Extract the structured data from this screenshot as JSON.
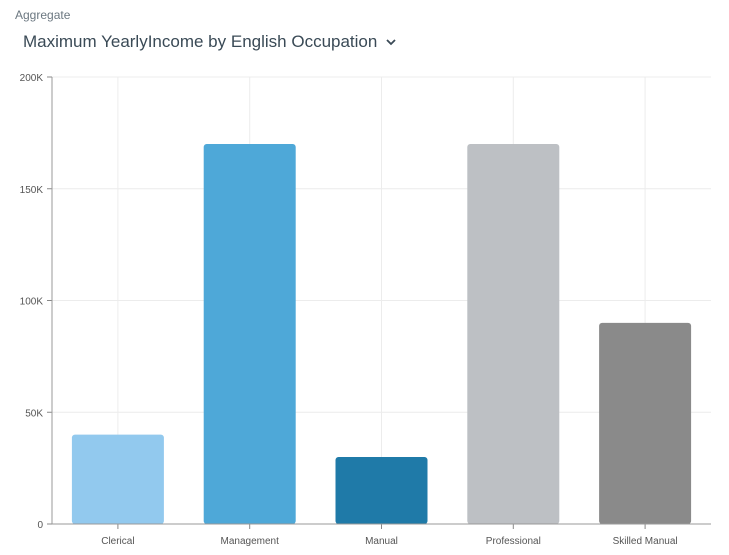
{
  "header": {
    "aggregate_label": "Aggregate",
    "title": "Maximum YearlyIncome by English Occupation",
    "chevron_icon": "chevron-down-icon"
  },
  "chart_data": {
    "type": "bar",
    "title": "Maximum YearlyIncome by English Occupation",
    "categories": [
      "Clerical",
      "Management",
      "Manual",
      "Professional",
      "Skilled Manual"
    ],
    "values": [
      40000,
      170000,
      30000,
      170000,
      90000
    ],
    "colors": [
      "#92c9ee",
      "#4ea8d8",
      "#1f7aa8",
      "#bdc0c4",
      "#8a8a8a"
    ],
    "ylim": [
      0,
      200000
    ],
    "yticks": [
      0,
      50000,
      100000,
      150000,
      200000
    ],
    "ytick_labels": [
      "0",
      "50K",
      "100K",
      "150K",
      "200K"
    ],
    "grid": true,
    "xlabel": "",
    "ylabel": ""
  }
}
